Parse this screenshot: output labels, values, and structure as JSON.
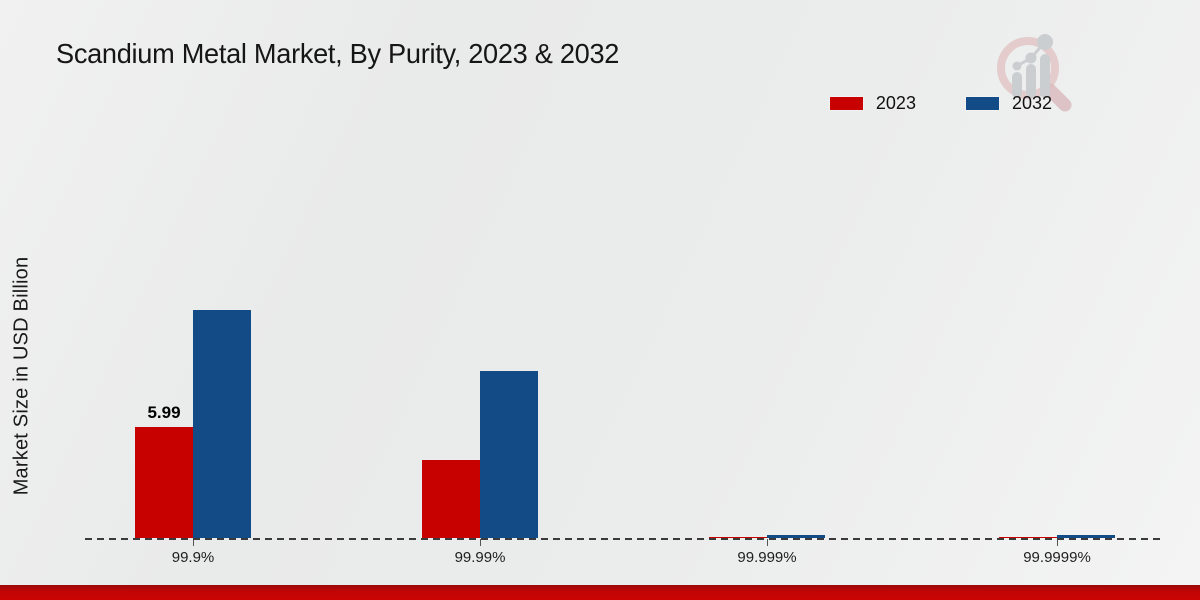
{
  "header": {
    "title": "Scandium Metal Market, By Purity, 2023 & 2032"
  },
  "legend": {
    "items": [
      {
        "label": "2023",
        "color": "#c70100"
      },
      {
        "label": "2032",
        "color": "#134b86"
      }
    ]
  },
  "chart_data": {
    "type": "bar",
    "title": "Scandium Metal Market, By Purity, 2023 & 2032",
    "categories": [
      "99.9%",
      "99.99%",
      "99.999%",
      "99.9999%"
    ],
    "series": [
      {
        "name": "2023",
        "color": "#c70100",
        "values": [
          5.99,
          4.2,
          0.03,
          0.03
        ],
        "labels": [
          "5.99",
          null,
          null,
          null
        ]
      },
      {
        "name": "2032",
        "color": "#134b86",
        "values": [
          12.3,
          9.0,
          0.15,
          0.15
        ],
        "labels": [
          null,
          null,
          null,
          null
        ]
      }
    ],
    "xlabel": "",
    "ylabel": "Market Size in USD Billion",
    "ylim": [
      0,
      13.5
    ],
    "grid": false,
    "legend_position": "top-right",
    "baseline_style": "dashed"
  },
  "colors": {
    "background": "#ebecec",
    "footer_stripe": "#c00505",
    "axis_line": "#3a3a3a"
  },
  "icons": {
    "logo": "magnifier-bar-chart-logo"
  }
}
